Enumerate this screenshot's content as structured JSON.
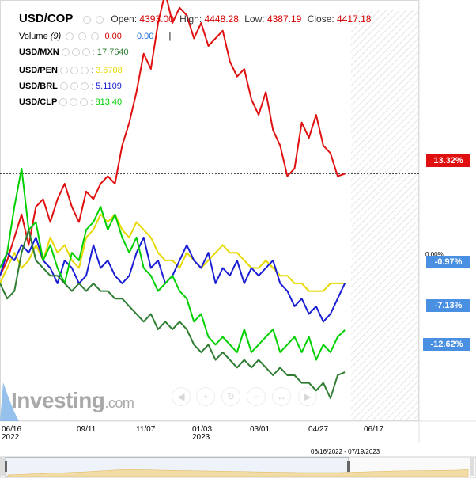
{
  "header": {
    "symbol": "USD/COP",
    "open_label": "Open:",
    "open": "4393.00",
    "high_label": "High:",
    "high": "4448.28",
    "low_label": "Low:",
    "low": "4387.19",
    "close_label": "Close:",
    "close": "4417.18"
  },
  "volume": {
    "label": "Volume",
    "period": "(9)",
    "v1": "0.00",
    "v2": "0.00",
    "sep": "|"
  },
  "legend": [
    {
      "name": "USD/MXN",
      "value": "17.7640",
      "color": "#2e7d32"
    },
    {
      "name": "USD/PEN",
      "value": "3.6708",
      "color": "#e6d800"
    },
    {
      "name": "USD/BRL",
      "value": "5.1109",
      "color": "#1a1fd4"
    },
    {
      "name": "USD/CLP",
      "value": "813.40",
      "color": "#00d000"
    }
  ],
  "badges": [
    {
      "text": "13.32%",
      "color": "#e01010"
    },
    {
      "text": "-0.97%",
      "color": "#4a90e2"
    },
    {
      "text": "-7.13%",
      "color": "#4a90e2"
    },
    {
      "text": "-12.62%",
      "color": "#4a90e2"
    }
  ],
  "zero_label": "0.00%",
  "watermark": {
    "main": "Investing",
    "suffix": ".com"
  },
  "navigator_range": "06/16/2022 - 07/19/2023",
  "chart_data": {
    "type": "line",
    "unit": "percent change",
    "x_ticks": [
      "06/16",
      "09/11",
      "11/07",
      "01/03",
      "03/01",
      "04/27",
      "06/17"
    ],
    "x_tick_years": {
      "06/16": "2022",
      "01/03": "2023"
    },
    "series": [
      {
        "name": "USD/COP",
        "color": "#e01010",
        "points": [
          [
            0,
            0
          ],
          [
            3,
            2
          ],
          [
            6,
            5
          ],
          [
            9,
            8
          ],
          [
            12,
            4
          ],
          [
            15,
            9
          ],
          [
            18,
            10
          ],
          [
            21,
            7
          ],
          [
            24,
            10
          ],
          [
            27,
            12
          ],
          [
            30,
            9
          ],
          [
            33,
            7
          ],
          [
            36,
            11
          ],
          [
            39,
            10
          ],
          [
            42,
            12
          ],
          [
            45,
            13
          ],
          [
            48,
            12
          ],
          [
            51,
            17
          ],
          [
            54,
            20
          ],
          [
            57,
            24
          ],
          [
            60,
            29
          ],
          [
            63,
            27
          ],
          [
            66,
            33
          ],
          [
            69,
            37
          ],
          [
            72,
            33
          ],
          [
            75,
            35
          ],
          [
            78,
            34
          ],
          [
            81,
            31
          ],
          [
            84,
            33
          ],
          [
            87,
            30
          ],
          [
            90,
            31
          ],
          [
            93,
            32
          ],
          [
            96,
            28
          ],
          [
            99,
            26
          ],
          [
            102,
            27
          ],
          [
            105,
            23
          ],
          [
            108,
            21
          ],
          [
            111,
            24
          ],
          [
            114,
            19
          ],
          [
            117,
            17
          ],
          [
            120,
            13
          ],
          [
            123,
            14
          ],
          [
            126,
            20
          ],
          [
            129,
            18
          ],
          [
            132,
            21
          ],
          [
            135,
            17
          ],
          [
            138,
            16
          ],
          [
            141,
            13
          ],
          [
            144,
            13.3
          ]
        ]
      },
      {
        "name": "USD/PEN",
        "color": "#e6d800",
        "points": [
          [
            0,
            -1
          ],
          [
            3,
            1
          ],
          [
            6,
            3
          ],
          [
            9,
            1
          ],
          [
            12,
            2
          ],
          [
            15,
            4
          ],
          [
            18,
            2
          ],
          [
            21,
            5
          ],
          [
            24,
            3
          ],
          [
            27,
            4
          ],
          [
            30,
            2
          ],
          [
            33,
            1
          ],
          [
            36,
            5
          ],
          [
            39,
            6
          ],
          [
            42,
            8
          ],
          [
            45,
            7
          ],
          [
            48,
            8
          ],
          [
            51,
            6
          ],
          [
            54,
            5
          ],
          [
            57,
            7
          ],
          [
            60,
            6
          ],
          [
            63,
            5
          ],
          [
            66,
            3
          ],
          [
            69,
            2
          ],
          [
            72,
            2
          ],
          [
            75,
            1
          ],
          [
            78,
            3
          ],
          [
            81,
            2
          ],
          [
            84,
            1
          ],
          [
            87,
            2
          ],
          [
            90,
            3
          ],
          [
            93,
            4
          ],
          [
            96,
            3
          ],
          [
            99,
            3
          ],
          [
            102,
            2
          ],
          [
            105,
            1
          ],
          [
            108,
            1
          ],
          [
            111,
            2
          ],
          [
            114,
            1
          ],
          [
            117,
            0
          ],
          [
            120,
            0
          ],
          [
            123,
            -1
          ],
          [
            126,
            -1
          ],
          [
            129,
            -2
          ],
          [
            132,
            -2
          ],
          [
            135,
            -2
          ],
          [
            138,
            -1
          ],
          [
            141,
            -1
          ],
          [
            144,
            -1
          ]
        ]
      },
      {
        "name": "USD/BRL",
        "color": "#1a1fd4",
        "points": [
          [
            0,
            0
          ],
          [
            3,
            3
          ],
          [
            6,
            2
          ],
          [
            9,
            4
          ],
          [
            12,
            3
          ],
          [
            15,
            5
          ],
          [
            18,
            2
          ],
          [
            21,
            1
          ],
          [
            24,
            -1
          ],
          [
            27,
            2
          ],
          [
            30,
            1
          ],
          [
            33,
            -1
          ],
          [
            36,
            0
          ],
          [
            39,
            4
          ],
          [
            42,
            1
          ],
          [
            45,
            2
          ],
          [
            48,
            0
          ],
          [
            51,
            -1
          ],
          [
            54,
            0
          ],
          [
            57,
            3
          ],
          [
            60,
            5
          ],
          [
            63,
            1
          ],
          [
            66,
            2
          ],
          [
            69,
            -1
          ],
          [
            72,
            0
          ],
          [
            75,
            2
          ],
          [
            78,
            4
          ],
          [
            81,
            2
          ],
          [
            84,
            1
          ],
          [
            87,
            3
          ],
          [
            90,
            -1
          ],
          [
            93,
            1
          ],
          [
            96,
            0
          ],
          [
            99,
            2
          ],
          [
            102,
            -1
          ],
          [
            105,
            1
          ],
          [
            108,
            0
          ],
          [
            111,
            1
          ],
          [
            114,
            2
          ],
          [
            117,
            -1
          ],
          [
            120,
            -2
          ],
          [
            123,
            -4
          ],
          [
            126,
            -3
          ],
          [
            129,
            -5
          ],
          [
            132,
            -4
          ],
          [
            135,
            -6
          ],
          [
            138,
            -5
          ],
          [
            141,
            -3
          ],
          [
            144,
            -1
          ]
        ]
      },
      {
        "name": "USD/CLP",
        "color": "#00d000",
        "points": [
          [
            0,
            1
          ],
          [
            3,
            3
          ],
          [
            6,
            9
          ],
          [
            9,
            14
          ],
          [
            12,
            6
          ],
          [
            15,
            7
          ],
          [
            18,
            2
          ],
          [
            21,
            4
          ],
          [
            24,
            1
          ],
          [
            27,
            -1
          ],
          [
            30,
            3
          ],
          [
            33,
            2
          ],
          [
            36,
            6
          ],
          [
            39,
            7
          ],
          [
            42,
            9
          ],
          [
            45,
            6
          ],
          [
            48,
            8
          ],
          [
            51,
            5
          ],
          [
            54,
            3
          ],
          [
            57,
            5
          ],
          [
            60,
            1
          ],
          [
            63,
            0
          ],
          [
            66,
            -2
          ],
          [
            69,
            -1
          ],
          [
            72,
            0
          ],
          [
            75,
            -2
          ],
          [
            78,
            -3
          ],
          [
            81,
            -6
          ],
          [
            84,
            -5
          ],
          [
            87,
            -8
          ],
          [
            90,
            -9
          ],
          [
            93,
            -8
          ],
          [
            96,
            -9
          ],
          [
            99,
            -10
          ],
          [
            102,
            -7
          ],
          [
            105,
            -10
          ],
          [
            108,
            -9
          ],
          [
            111,
            -8
          ],
          [
            114,
            -7
          ],
          [
            117,
            -10
          ],
          [
            120,
            -9
          ],
          [
            123,
            -8
          ],
          [
            126,
            -10
          ],
          [
            129,
            -8
          ],
          [
            132,
            -11
          ],
          [
            135,
            -9
          ],
          [
            138,
            -10
          ],
          [
            141,
            -8
          ],
          [
            144,
            -7.1
          ]
        ]
      },
      {
        "name": "USD/MXN",
        "color": "#2e7d32",
        "points": [
          [
            0,
            -1
          ],
          [
            3,
            -3
          ],
          [
            6,
            -2
          ],
          [
            9,
            3
          ],
          [
            12,
            6
          ],
          [
            15,
            2
          ],
          [
            18,
            1
          ],
          [
            21,
            0
          ],
          [
            24,
            0
          ],
          [
            27,
            -1
          ],
          [
            30,
            -2
          ],
          [
            33,
            -1
          ],
          [
            36,
            -2
          ],
          [
            39,
            -1
          ],
          [
            42,
            -2
          ],
          [
            45,
            -2
          ],
          [
            48,
            -3
          ],
          [
            51,
            -3
          ],
          [
            54,
            -4
          ],
          [
            57,
            -5
          ],
          [
            60,
            -6
          ],
          [
            63,
            -5
          ],
          [
            66,
            -7
          ],
          [
            69,
            -6
          ],
          [
            72,
            -7
          ],
          [
            75,
            -6
          ],
          [
            78,
            -7
          ],
          [
            81,
            -9
          ],
          [
            84,
            -10
          ],
          [
            87,
            -9
          ],
          [
            90,
            -11
          ],
          [
            93,
            -10
          ],
          [
            96,
            -11
          ],
          [
            99,
            -12
          ],
          [
            102,
            -11
          ],
          [
            105,
            -12
          ],
          [
            108,
            -11
          ],
          [
            111,
            -12
          ],
          [
            114,
            -13
          ],
          [
            117,
            -12
          ],
          [
            120,
            -13
          ],
          [
            123,
            -13
          ],
          [
            126,
            -14
          ],
          [
            129,
            -14
          ],
          [
            132,
            -15
          ],
          [
            135,
            -14
          ],
          [
            138,
            -16
          ],
          [
            141,
            -13
          ],
          [
            144,
            -12.6
          ]
        ]
      }
    ],
    "ylim": [
      -19,
      36
    ],
    "xlim": [
      0,
      175
    ],
    "reference_line_value": 13.32
  }
}
